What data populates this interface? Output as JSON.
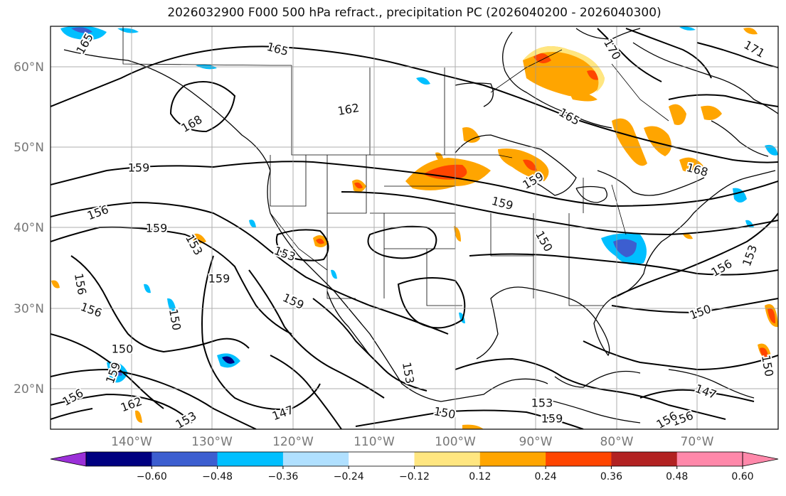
{
  "title": "2026032900 F000 500 hPa refract., precipitation PC (2026040200 - 2026040300)",
  "lat_labels": [
    "60°N",
    "50°N",
    "40°N",
    "30°N",
    "20°N"
  ],
  "lon_labels": [
    "140°W",
    "130°W",
    "120°W",
    "110°W",
    "100°W",
    "90°W",
    "80°W",
    "70°W"
  ],
  "colorbar": {
    "ticks": [
      "−0.60",
      "−0.48",
      "−0.36",
      "−0.24",
      "−0.12",
      "0.12",
      "0.24",
      "0.36",
      "0.48",
      "0.60"
    ],
    "colors": [
      "#9b30d8",
      "#000080",
      "#3c5ed0",
      "#00bfff",
      "#b0e0ff",
      "#ffffff",
      "#ffe680",
      "#ffa500",
      "#ff4500",
      "#b22222",
      "#ff88aa",
      "#ff88aa"
    ]
  },
  "contour_labels": [
    "165",
    "165",
    "168",
    "162",
    "170",
    "171",
    "165",
    "168",
    "159",
    "159",
    "156",
    "156",
    "153",
    "156",
    "156",
    "159",
    "153",
    "159",
    "159",
    "150",
    "150",
    "159",
    "156",
    "150",
    "153",
    "150",
    "147",
    "153",
    "162",
    "156",
    "150",
    "150",
    "153",
    "153",
    "147",
    "159",
    "156",
    "159"
  ]
}
